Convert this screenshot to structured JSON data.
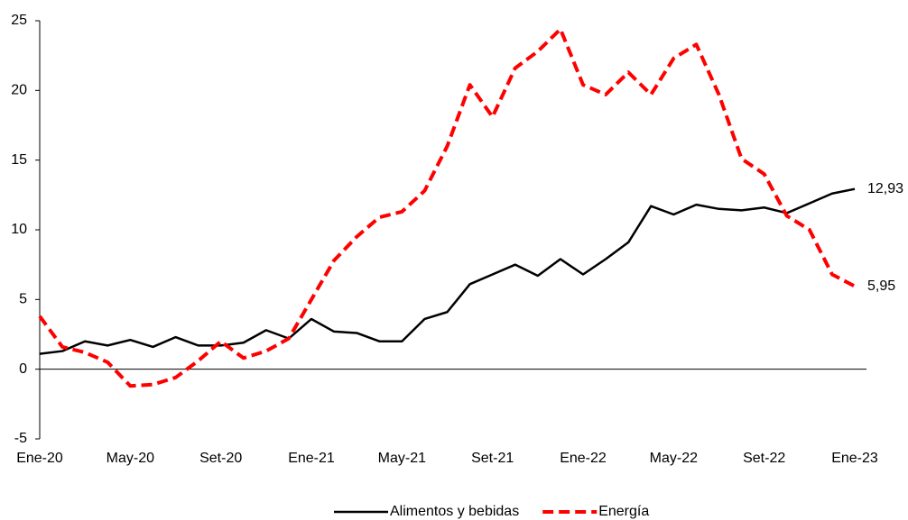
{
  "chart_data": {
    "type": "line",
    "categories": [
      "Ene-20",
      null,
      null,
      null,
      "May-20",
      null,
      null,
      null,
      "Set-20",
      null,
      null,
      null,
      "Ene-21",
      null,
      null,
      null,
      "May-21",
      null,
      null,
      null,
      "Set-21",
      null,
      null,
      null,
      "Ene-22",
      null,
      null,
      null,
      "May-22",
      null,
      null,
      null,
      "Set-22",
      null,
      null,
      null,
      "Ene-23"
    ],
    "series": [
      {
        "name": "Alimentos y bebidas",
        "color": "#000000",
        "dash": false,
        "values": [
          1.1,
          1.3,
          2.0,
          1.7,
          2.1,
          1.6,
          2.3,
          1.7,
          1.7,
          1.9,
          2.8,
          2.2,
          3.6,
          2.7,
          2.6,
          2.0,
          2.0,
          3.6,
          4.1,
          6.1,
          6.8,
          7.5,
          6.7,
          7.9,
          6.8,
          7.9,
          9.1,
          11.7,
          11.1,
          11.8,
          11.5,
          11.4,
          11.6,
          11.2,
          11.9,
          12.6,
          12.93
        ],
        "value_labels": [
          null,
          null,
          null,
          null,
          null,
          null,
          null,
          null,
          null,
          null,
          null,
          null,
          null,
          null,
          null,
          null,
          null,
          null,
          null,
          null,
          null,
          null,
          null,
          null,
          null,
          null,
          null,
          null,
          null,
          null,
          null,
          null,
          null,
          null,
          null,
          null,
          "12,93"
        ]
      },
      {
        "name": "Energía",
        "color": "#ff0000",
        "dash": true,
        "values": [
          3.8,
          1.6,
          1.2,
          0.5,
          -1.2,
          -1.1,
          -0.6,
          0.6,
          2.0,
          0.8,
          1.3,
          2.2,
          5.0,
          7.8,
          9.5,
          10.9,
          11.3,
          12.8,
          16.0,
          20.4,
          18.1,
          21.6,
          22.8,
          24.4,
          20.4,
          19.7,
          21.3,
          19.7,
          22.3,
          23.3,
          19.7,
          15.1,
          14.0,
          11.0,
          10.0,
          6.8,
          5.95
        ],
        "value_labels": [
          null,
          null,
          null,
          null,
          null,
          null,
          null,
          null,
          null,
          null,
          null,
          null,
          null,
          null,
          null,
          null,
          null,
          null,
          null,
          null,
          null,
          null,
          null,
          null,
          null,
          null,
          null,
          null,
          null,
          null,
          null,
          null,
          null,
          null,
          null,
          null,
          "5,95"
        ]
      }
    ],
    "ylim": [
      -5,
      25
    ],
    "yticks": [
      -5,
      0,
      5,
      10,
      15,
      20,
      25
    ],
    "grid": false,
    "legend": "bottom"
  }
}
